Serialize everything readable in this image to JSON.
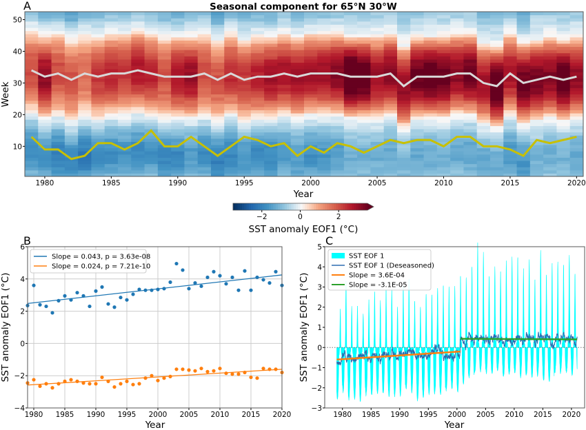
{
  "chart_data": [
    {
      "panel": "A",
      "type": "heatmap",
      "title": "Seasonal component for 65°N 30°W",
      "xlabel": "Year",
      "ylabel": "Week",
      "xlim": [
        1978.5,
        2020.5
      ],
      "ylim": [
        0.5,
        52.5
      ],
      "xticks": [
        1980,
        1985,
        1990,
        1995,
        2000,
        2005,
        2010,
        2015,
        2020
      ],
      "yticks": [
        10,
        20,
        30,
        40,
        50
      ],
      "years": [
        1979,
        1980,
        1981,
        1982,
        1983,
        1984,
        1985,
        1986,
        1987,
        1988,
        1989,
        1990,
        1991,
        1992,
        1993,
        1994,
        1995,
        1996,
        1997,
        1998,
        1999,
        2000,
        2001,
        2002,
        2003,
        2004,
        2005,
        2006,
        2007,
        2008,
        2009,
        2010,
        2011,
        2012,
        2013,
        2014,
        2015,
        2016,
        2017,
        2018,
        2019,
        2020
      ],
      "max_week": [
        34,
        32,
        33,
        31,
        33,
        32,
        33,
        33,
        34,
        33,
        32,
        32,
        32,
        33,
        31,
        33,
        31,
        32,
        32,
        33,
        32,
        33,
        33,
        33,
        32,
        32,
        32,
        33,
        29,
        32,
        32,
        32,
        33,
        33,
        30,
        29,
        33,
        30,
        31,
        32,
        31,
        32
      ],
      "min_week": [
        13,
        9,
        9,
        6,
        7,
        11,
        11,
        9,
        11,
        15,
        10,
        10,
        13,
        10,
        7,
        10,
        13,
        12,
        10,
        11,
        7,
        10,
        8,
        11,
        10,
        8,
        10,
        12,
        11,
        12,
        12,
        10,
        13,
        13,
        10,
        10,
        9,
        7,
        12,
        11,
        12,
        13
      ],
      "max_week_color": "#d9d9d9",
      "min_week_color": "#c8c000",
      "colorbar": {
        "label": "SST anomaly EOF1 (°C)",
        "ticks": [
          -2,
          0,
          2
        ],
        "range": [
          -3.5,
          3.5
        ],
        "extend": "max",
        "colormap": "RdBu_r"
      }
    },
    {
      "panel": "B",
      "type": "scatter",
      "xlabel": "Year",
      "ylabel": "SST anomaly EOF1 (°C)",
      "xlim": [
        1979,
        2020
      ],
      "ylim": [
        -4,
        6
      ],
      "xticks": [
        1980,
        1985,
        1990,
        1995,
        2000,
        2005,
        2010,
        2015,
        2020
      ],
      "yticks": [
        -4,
        -2,
        0,
        2,
        4,
        6
      ],
      "grid": true,
      "legend_position": "top-left",
      "x": [
        1979,
        1980,
        1981,
        1982,
        1983,
        1984,
        1985,
        1986,
        1987,
        1988,
        1989,
        1990,
        1991,
        1992,
        1993,
        1994,
        1995,
        1996,
        1997,
        1998,
        1999,
        2000,
        2001,
        2002,
        2003,
        2004,
        2005,
        2006,
        2007,
        2008,
        2009,
        2010,
        2011,
        2012,
        2013,
        2014,
        2015,
        2016,
        2017,
        2018,
        2019,
        2020
      ],
      "series": [
        {
          "name": "Slope = 0.043, p = 3.63e-08",
          "color": "#1f77b4",
          "values": [
            2.35,
            3.6,
            2.4,
            2.3,
            1.9,
            2.65,
            2.95,
            2.7,
            3.15,
            2.95,
            2.3,
            3.25,
            3.5,
            2.45,
            2.25,
            2.85,
            2.7,
            3.05,
            3.35,
            3.3,
            3.3,
            3.35,
            3.4,
            3.8,
            4.95,
            4.55,
            3.4,
            3.75,
            3.55,
            4.1,
            4.45,
            4.2,
            3.7,
            4.1,
            3.3,
            4.5,
            3.3,
            4.1,
            3.95,
            3.75,
            4.45,
            3.6
          ],
          "trend": [
            2.48,
            4.25
          ]
        },
        {
          "name": "Slope = 0.024, p = 7.21e-10",
          "color": "#ff7f0e",
          "values": [
            -2.45,
            -2.25,
            -2.65,
            -2.5,
            -2.75,
            -2.5,
            -2.35,
            -2.25,
            -2.35,
            -2.45,
            -2.5,
            -2.5,
            -2.1,
            -2.35,
            -2.7,
            -2.5,
            -2.35,
            -2.55,
            -2.5,
            -2.15,
            -2.0,
            -2.3,
            -2.15,
            -2.05,
            -1.6,
            -1.6,
            -1.65,
            -1.7,
            -1.55,
            -1.75,
            -1.7,
            -1.55,
            -1.85,
            -1.9,
            -1.9,
            -1.8,
            -2.1,
            -2.15,
            -1.55,
            -1.6,
            -1.6,
            -1.8
          ],
          "trend": [
            -2.58,
            -1.6
          ]
        }
      ]
    },
    {
      "panel": "C",
      "type": "area",
      "xlabel": "Year",
      "ylabel": "SST anomaly EOF1 (°C)",
      "xlim": [
        1976.9,
        2022.3
      ],
      "ylim": [
        -3,
        5
      ],
      "xticks": [
        1980,
        1985,
        1990,
        1995,
        2000,
        2005,
        2010,
        2015,
        2020
      ],
      "yticks": [
        -3,
        -2,
        -1,
        0,
        1,
        2,
        3,
        4,
        5
      ],
      "grid": false,
      "legend_position": "top-left",
      "series": [
        {
          "name": "SST EOF 1",
          "color": "#00ffff",
          "x_range": [
            1979,
            2021
          ]
        },
        {
          "name": "SST EOF 1 (Deseasoned)",
          "color": "#2b6cb0",
          "mean_before_2000_5": [
            -0.6,
            -0.2
          ],
          "mean_after_2000_5": [
            0.45,
            0.4
          ]
        },
        {
          "name": "Slope = 3.6E-04",
          "color": "#ff7f0e",
          "x": [
            1979,
            2000.6
          ],
          "y": [
            -0.6,
            -0.2
          ]
        },
        {
          "name": "Slope = -3.1E-05",
          "color": "#2ca02c",
          "x": [
            2000.6,
            2021
          ],
          "y": [
            0.43,
            0.4
          ]
        }
      ]
    }
  ]
}
